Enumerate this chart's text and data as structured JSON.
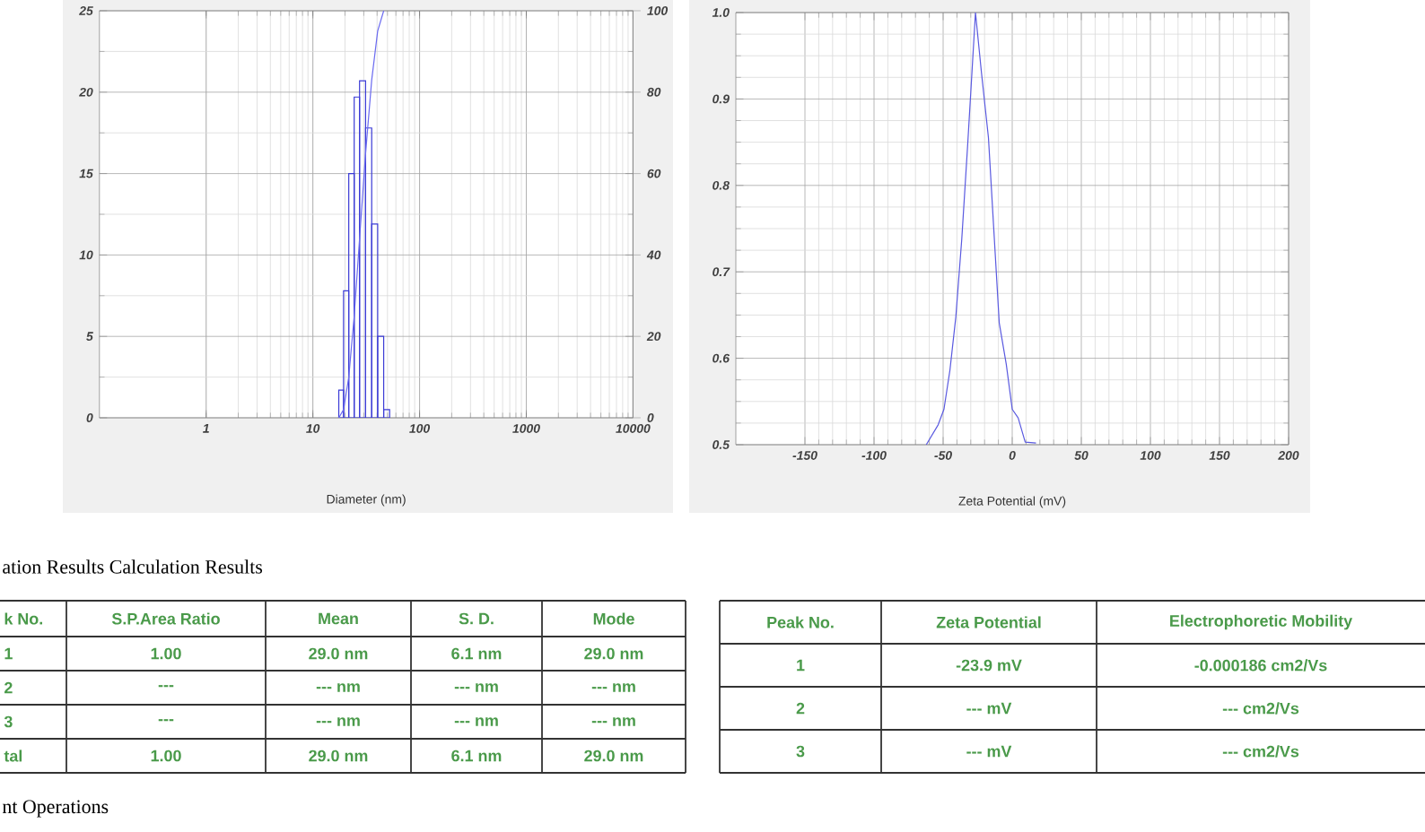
{
  "chart_data": [
    {
      "type": "histogram",
      "xlabel": "Diameter (nm)",
      "log": "x",
      "xlim": [
        0.1,
        10000
      ],
      "xticks": [
        1,
        10,
        100,
        1000,
        10000
      ],
      "ylim": [
        0,
        25
      ],
      "yticks": [
        0,
        5,
        10,
        15,
        20,
        25
      ],
      "y2lim": [
        0,
        100
      ],
      "y2ticks": [
        0,
        20,
        40,
        60,
        80,
        100
      ],
      "grid": true,
      "series": [
        {
          "type": "histogram",
          "color": "#3b3bd6",
          "bins": [
            17.5,
            19.4,
            21.7,
            24.4,
            27.4,
            31.2,
            35.6,
            40.5,
            46.1,
            52.4
          ],
          "values": [
            1.7,
            7.8,
            15.0,
            19.7,
            20.7,
            17.8,
            11.9,
            5.0,
            0.5
          ]
        },
        {
          "type": "line",
          "axis": "y2",
          "color": "#6a6af0",
          "x": [
            17.5,
            19.4,
            21.7,
            24.4,
            27.4,
            31.2,
            35.6,
            40.5,
            46.1
          ],
          "values": [
            0,
            2,
            10,
            25,
            44,
            65,
            83,
            95,
            100
          ]
        }
      ]
    },
    {
      "type": "line",
      "xlabel": "Zeta Potential (mV)",
      "xlim": [
        -200,
        200
      ],
      "xticks": [
        -150,
        -100,
        -50,
        0,
        50,
        100,
        150,
        200
      ],
      "ylim": [
        0.5,
        1
      ],
      "yticks": [
        0.5,
        0.6,
        0.7,
        0.8,
        0.9,
        {
          "value": 1,
          "label": "1.0"
        }
      ],
      "grid": true,
      "series": [
        {
          "color": "#5a5ae0",
          "x": [
            -62.2,
            -53.6,
            -49.4,
            -45.1,
            -40.8,
            -36.5,
            -32.2,
            -26.6,
            -22.3,
            -17.2,
            -9.4,
            -4.3,
            0,
            4.3,
            9.4,
            17.2
          ],
          "values": [
            0.5,
            0.523,
            0.541,
            0.586,
            0.648,
            0.738,
            0.848,
            1.0,
            0.931,
            0.855,
            0.641,
            0.593,
            0.541,
            0.531,
            0.503,
            0.502
          ]
        }
      ]
    },
    {
      "type": "other",
      "title": "ation Results Calculation Results",
      "categories": [
        "k No.",
        "S.P.Area Ratio",
        "Mean",
        "S. D.",
        "Mode"
      ],
      "cell_labels": [
        [
          "1",
          "1.00",
          "29.0 nm",
          "6.1 nm",
          "29.0 nm"
        ],
        [
          "2",
          "---",
          "--- nm",
          "--- nm",
          "--- nm"
        ],
        [
          "3",
          "---",
          "--- nm",
          "--- nm",
          "--- nm"
        ],
        [
          "tal",
          "1.00",
          "29.0 nm",
          "6.1 nm",
          "29.0 nm"
        ]
      ],
      "annotations": [
        "nt Operations"
      ]
    },
    {
      "type": "other",
      "categories": [
        "Peak No.",
        "Zeta Potential",
        "Electrophoretic Mobility"
      ],
      "cell_labels": [
        [
          "1",
          "-23.9 mV",
          "-0.000186 cm2/Vs"
        ],
        [
          "2",
          "--- mV",
          "--- cm2/Vs"
        ],
        [
          "3",
          "--- mV",
          "--- cm2/Vs"
        ]
      ]
    }
  ]
}
